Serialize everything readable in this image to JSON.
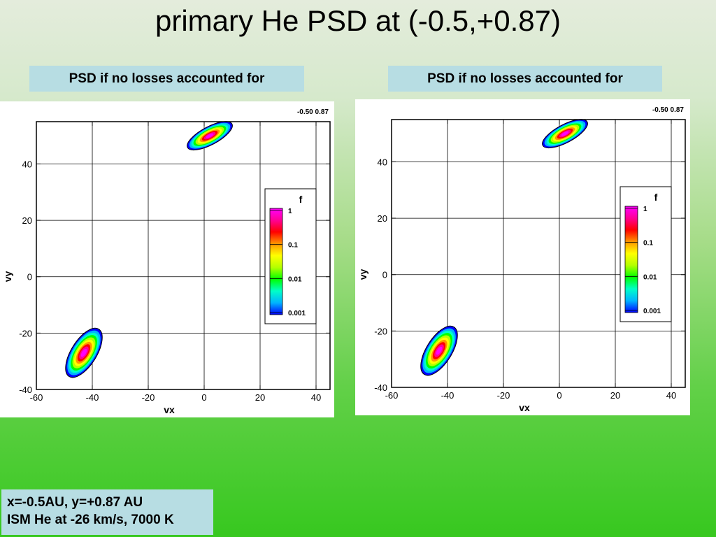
{
  "title": "primary He PSD at (-0.5,+0.87)",
  "panels": [
    {
      "label": "PSD if no losses accounted for"
    },
    {
      "label": "PSD if no losses accounted for"
    }
  ],
  "info": {
    "line1": "x=-0.5AU, y=+0.87 AU",
    "line2": "ISM He at -26 km/s, 7000 K"
  },
  "colors": {
    "levels": [
      "#0000ff",
      "#00b4ff",
      "#00ffc8",
      "#00ff00",
      "#b4ff00",
      "#ffff00",
      "#ff9600",
      "#ff0000",
      "#ff0096",
      "#ff00ff"
    ],
    "outline": "#000000"
  },
  "chart_data": [
    {
      "type": "contour",
      "corner_label": "-0.50 0.87",
      "xlabel": "vx",
      "ylabel": "vy",
      "xlim": [
        -60,
        45
      ],
      "ylim": [
        -40,
        55
      ],
      "xticks": [
        -60,
        -40,
        -20,
        0,
        20,
        40
      ],
      "yticks": [
        -40,
        -20,
        0,
        20,
        40
      ],
      "grid": true,
      "colorbar": {
        "title": "f",
        "ticks": [
          "1",
          "0.1",
          "0.01",
          "0.001"
        ],
        "scale": "log",
        "range": [
          0.001,
          1
        ],
        "placement": "right"
      },
      "blobs": [
        {
          "center": [
            2,
            50
          ],
          "semi_major": 9,
          "semi_minor": 3.2,
          "angle_deg": -28,
          "peak": 1
        },
        {
          "center": [
            -43,
            -27
          ],
          "semi_major": 10,
          "semi_minor": 4.5,
          "angle_deg": -58,
          "peak": 1
        }
      ]
    },
    {
      "type": "contour",
      "corner_label": "-0.50 0.87",
      "xlabel": "vx",
      "ylabel": "vy",
      "xlim": [
        -60,
        45
      ],
      "ylim": [
        -40,
        55
      ],
      "xticks": [
        -60,
        -40,
        -20,
        0,
        20,
        40
      ],
      "yticks": [
        -40,
        -20,
        0,
        20,
        40
      ],
      "grid": true,
      "colorbar": {
        "title": "f",
        "ticks": [
          "1",
          "0.1",
          "0.01",
          "0.001"
        ],
        "scale": "log",
        "range": [
          0.001,
          1
        ],
        "placement": "right"
      },
      "blobs": [
        {
          "center": [
            2,
            50
          ],
          "semi_major": 9,
          "semi_minor": 3.2,
          "angle_deg": -28,
          "peak": 1
        },
        {
          "center": [
            -43,
            -27
          ],
          "semi_major": 10,
          "semi_minor": 4.5,
          "angle_deg": -58,
          "peak": 1
        }
      ]
    }
  ]
}
